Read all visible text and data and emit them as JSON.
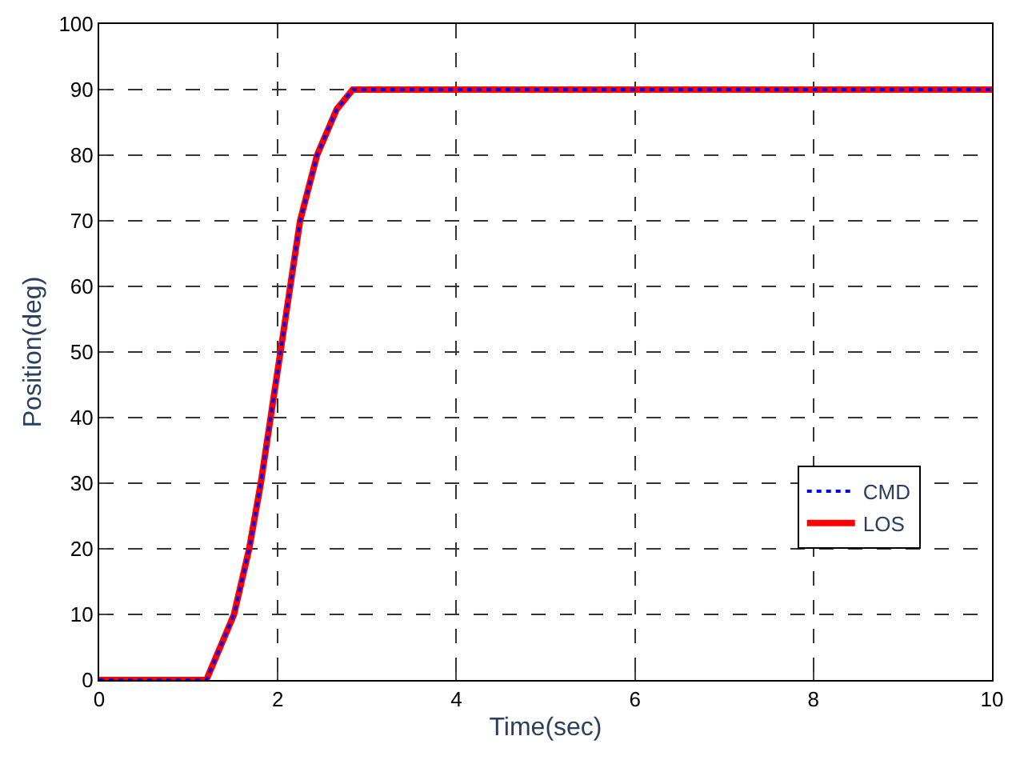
{
  "chart_data": {
    "type": "line",
    "xlabel": "Time(sec)",
    "ylabel": "Position(deg)",
    "x": [
      0,
      1.2,
      1.51,
      1.68,
      1.81,
      1.92,
      2.03,
      2.14,
      2.25,
      2.44,
      2.66,
      2.84,
      10
    ],
    "series": [
      {
        "name": "LOS",
        "color": "#ff0000",
        "line_style": "solid",
        "values": [
          0,
          0,
          10,
          20,
          30,
          40,
          50,
          60,
          70,
          80,
          87,
          90,
          90
        ]
      },
      {
        "name": "CMD",
        "color": "#0000ff",
        "line_style": "dotted",
        "values": [
          0,
          0,
          10,
          20,
          30,
          40,
          50,
          60,
          70,
          80,
          87,
          90,
          90
        ]
      }
    ],
    "xlim": [
      0,
      10
    ],
    "xticks": [
      0,
      2,
      4,
      6,
      8,
      10
    ],
    "ylim": [
      0,
      100
    ],
    "yticks": [
      0,
      10,
      20,
      30,
      40,
      50,
      60,
      70,
      80,
      90,
      100
    ],
    "grid": true,
    "legend": "bottom right",
    "marker": "none"
  }
}
